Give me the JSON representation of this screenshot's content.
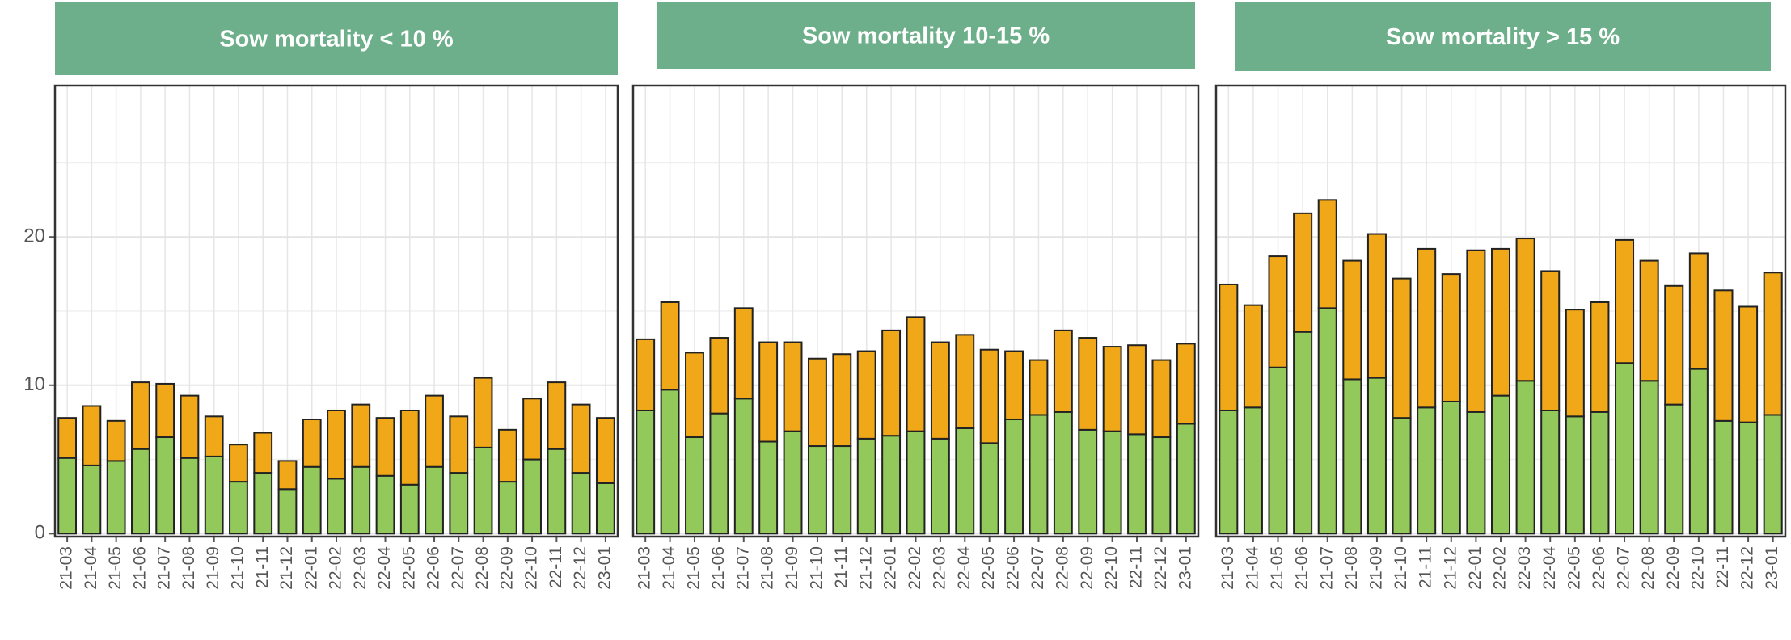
{
  "chart_data": [
    {
      "type": "bar",
      "title": "Sow mortality < 10 %",
      "categories": [
        "21-03",
        "21-04",
        "21-05",
        "21-06",
        "21-07",
        "21-08",
        "21-09",
        "21-10",
        "21-11",
        "21-12",
        "22-01",
        "22-02",
        "22-03",
        "22-04",
        "22-05",
        "22-06",
        "22-07",
        "22-08",
        "22-09",
        "22-10",
        "22-11",
        "22-12",
        "23-01"
      ],
      "series": [
        {
          "color": "#92c95a",
          "values": [
            5.1,
            4.6,
            4.9,
            5.7,
            6.5,
            5.1,
            5.2,
            3.5,
            4.1,
            3.0,
            4.5,
            3.7,
            4.5,
            3.9,
            3.3,
            4.5,
            4.1,
            5.8,
            3.5,
            5.0,
            5.7,
            4.1,
            3.4
          ]
        },
        {
          "color": "#f0a818",
          "values": [
            2.7,
            4.0,
            2.7,
            4.5,
            3.6,
            4.2,
            2.7,
            2.5,
            2.7,
            1.9,
            3.2,
            4.6,
            4.2,
            3.9,
            5.0,
            4.8,
            3.8,
            4.7,
            3.5,
            4.1,
            4.5,
            4.6,
            4.4
          ]
        }
      ],
      "ylim": [
        -0.2,
        30.2
      ],
      "yticks": [
        0,
        10,
        20
      ],
      "grid": true
    },
    {
      "type": "bar",
      "title": "Sow mortality 10-15 %",
      "categories": [
        "21-03",
        "21-04",
        "21-05",
        "21-06",
        "21-07",
        "21-08",
        "21-09",
        "21-10",
        "21-11",
        "21-12",
        "22-01",
        "22-02",
        "22-03",
        "22-04",
        "22-05",
        "22-06",
        "22-07",
        "22-08",
        "22-09",
        "22-10",
        "22-11",
        "22-12",
        "23-01"
      ],
      "series": [
        {
          "color": "#92c95a",
          "values": [
            8.3,
            9.7,
            6.5,
            8.1,
            9.1,
            6.2,
            6.9,
            5.9,
            5.9,
            6.4,
            6.6,
            6.9,
            6.4,
            7.1,
            6.1,
            7.7,
            8.0,
            8.2,
            7.0,
            6.9,
            6.7,
            6.5,
            7.4
          ]
        },
        {
          "color": "#f0a818",
          "values": [
            4.8,
            5.9,
            5.7,
            5.1,
            6.1,
            6.7,
            6.0,
            5.9,
            6.2,
            5.9,
            7.1,
            7.7,
            6.5,
            6.3,
            6.3,
            4.6,
            3.7,
            5.5,
            6.2,
            5.7,
            6.0,
            5.2,
            5.4
          ]
        }
      ],
      "ylim": [
        -0.2,
        30.2
      ],
      "yticks": [
        0,
        10,
        20
      ],
      "grid": true
    },
    {
      "type": "bar",
      "title": "Sow mortality > 15 %",
      "categories": [
        "21-03",
        "21-04",
        "21-05",
        "21-06",
        "21-07",
        "21-08",
        "21-09",
        "21-10",
        "21-11",
        "21-12",
        "22-01",
        "22-02",
        "22-03",
        "22-04",
        "22-05",
        "22-06",
        "22-07",
        "22-08",
        "22-09",
        "22-10",
        "22-11",
        "22-12",
        "23-01"
      ],
      "series": [
        {
          "color": "#92c95a",
          "values": [
            8.3,
            8.5,
            11.2,
            13.6,
            15.2,
            10.4,
            10.5,
            7.8,
            8.5,
            8.9,
            8.2,
            9.3,
            10.3,
            8.3,
            7.9,
            8.2,
            11.5,
            10.3,
            8.7,
            11.1,
            7.6,
            7.5,
            8.0
          ]
        },
        {
          "color": "#f0a818",
          "values": [
            8.5,
            6.9,
            7.5,
            8.0,
            7.3,
            8.0,
            9.7,
            9.4,
            10.7,
            8.6,
            10.9,
            9.9,
            9.6,
            9.4,
            7.2,
            7.4,
            8.3,
            8.1,
            8.0,
            7.8,
            8.8,
            7.8,
            9.6
          ]
        }
      ],
      "ylim": [
        -0.2,
        30.2
      ],
      "yticks": [
        0,
        10,
        20
      ],
      "grid": true
    }
  ]
}
